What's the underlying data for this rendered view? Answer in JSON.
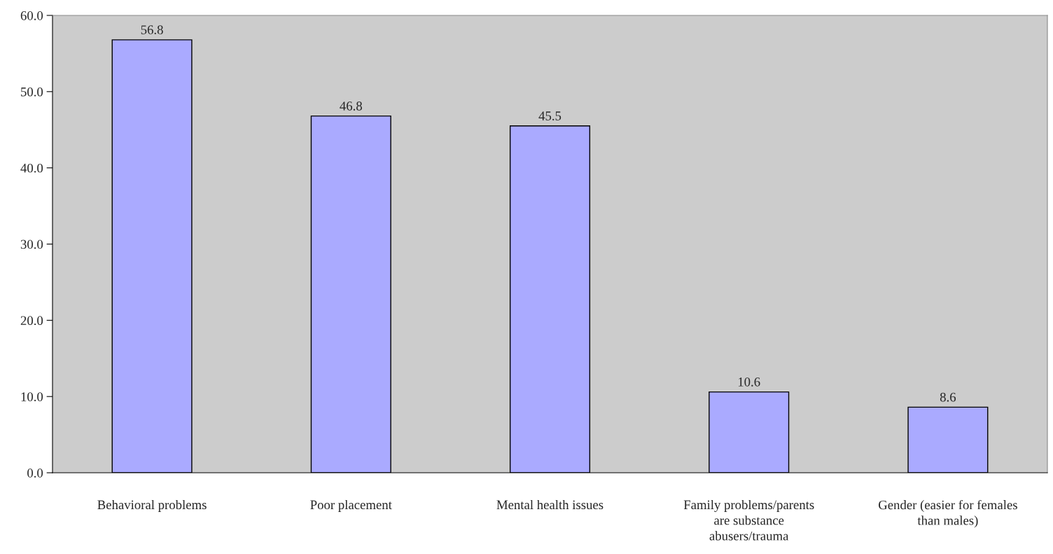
{
  "chart_data": {
    "type": "bar",
    "categories": [
      "Behavioral problems",
      "Poor placement",
      "Mental health issues",
      "Family problems/parents\nare substance\nabusers/trauma",
      "Gender (easier for females\nthan males)"
    ],
    "values": [
      56.8,
      46.8,
      45.5,
      10.6,
      8.6
    ],
    "color": "#aaaaff",
    "ylim": [
      0,
      60
    ],
    "yticks": [
      {
        "value": 0,
        "label": "0.0"
      },
      {
        "value": 10,
        "label": "10.0"
      },
      {
        "value": 20,
        "label": "20.0"
      },
      {
        "value": 30,
        "label": "30.0"
      },
      {
        "value": 40,
        "label": "40.0"
      },
      {
        "value": 50,
        "label": "50.0"
      },
      {
        "value": 60,
        "label": "60.0"
      }
    ],
    "data_labels": true,
    "legend": false
  }
}
